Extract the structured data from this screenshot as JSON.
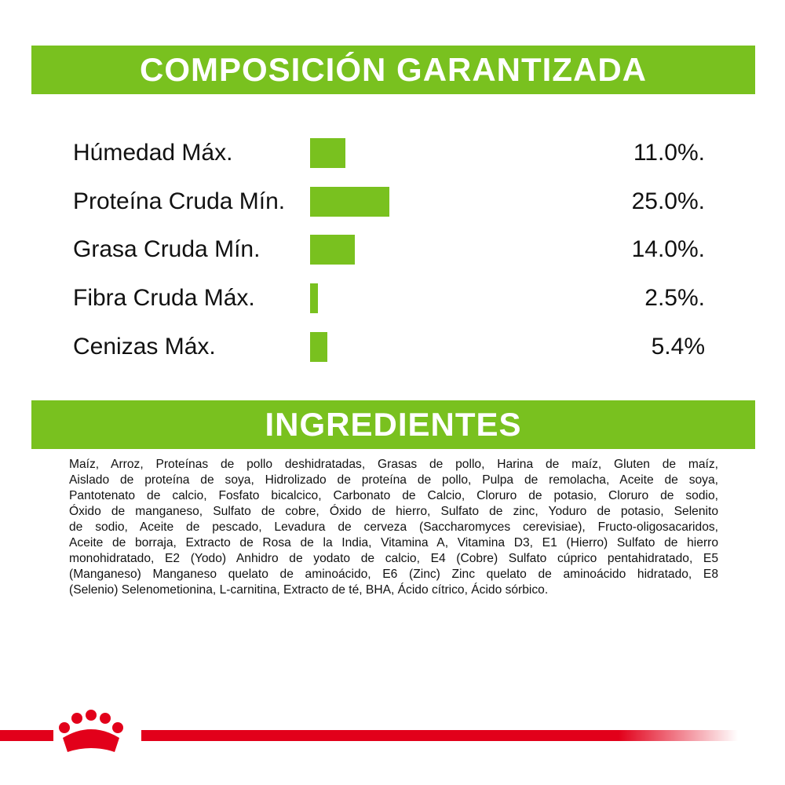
{
  "header": {
    "title": "COMPOSICIÓN GARANTIZADA"
  },
  "composition": {
    "color": "#79c11f",
    "rows": [
      {
        "label": "Húmedad Máx.",
        "value": 11.0,
        "value_label": "11.0%."
      },
      {
        "label": "Proteína Cruda Mín.",
        "value": 25.0,
        "value_label": "25.0%."
      },
      {
        "label": "Grasa Cruda Mín.",
        "value": 14.0,
        "value_label": "14.0%."
      },
      {
        "label": "Fibra Cruda Máx.",
        "value": 2.5,
        "value_label": "2.5%."
      },
      {
        "label": "Cenizas Máx.",
        "value": 5.4,
        "value_label": "5.4%"
      }
    ]
  },
  "ingredients": {
    "title": "INGREDIENTES",
    "lines": [
      "Maíz, Arroz, Proteínas de pollo deshidratadas, Grasas  de pollo, Harina de maíz, Gluten de maíz,",
      "Aislado de proteína de soya, Hidrolizado de proteína de pollo, Pulpa de remolacha, Aceite de soya,",
      "Pantotenato de calcio, Fosfato bicalcico, Carbonato de Calcio, Cloruro de potasio, Cloruro de sodio,",
      "Óxido de manganeso, Sulfato de cobre, Óxido de hierro, Sulfato de zinc, Yoduro de potasio, Selenito",
      "de sodio, Aceite de pescado, Levadura de cerveza (Saccharomyces cerevisiae), Fructo-oligosacaridos,",
      "Aceite de borraja, Extracto de Rosa de la India, Vitamina A, Vitamina D3, E1 (Hierro) Sulfato de hierro",
      "monohidratado, E2 (Yodo) Anhidro de yodato de calcio, E4 (Cobre) Sulfato cúprico pentahidratado, E5",
      "(Manganeso) Manganeso quelato de aminoácido, E6 (Zinc) Zinc quelato de aminoácido hidratado, E8",
      "(Selenio) Selenometionina, L-carnitina, Extracto de té, BHA, Ácido cítrico, Ácido sórbico."
    ]
  }
}
